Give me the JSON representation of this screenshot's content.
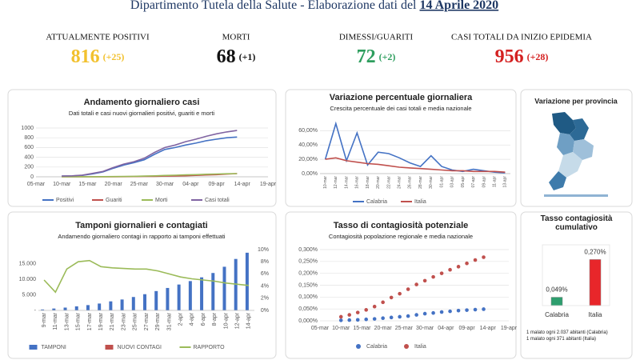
{
  "header": {
    "title": "Dipartimento Tutela della Salute - Elaborazione dati del ",
    "date": "14 Aprile 2020"
  },
  "kpis": [
    {
      "label": "ATTUALMENTE POSITIVI",
      "value": 816,
      "delta": "(+25)",
      "color": "#f2c12e"
    },
    {
      "label": "MORTI",
      "value": 68,
      "delta": "(+1)",
      "color": "#111111"
    },
    {
      "label": "DIMESSI/GUARITI",
      "value": 72,
      "delta": "(+2)",
      "color": "#2e9e5e"
    },
    {
      "label": "CASI TOTALI DA INIZIO EPIDEMIA",
      "value": 956,
      "delta": "(+28)",
      "color": "#d42020"
    }
  ],
  "map_panel": {
    "title": "Variazione per provincia"
  },
  "chart_data": [
    {
      "type": "line",
      "title": "Andamento giornaliero casi",
      "subtitle": "Dati totali e casi nuovi giornalieri positivi, guariti e morti",
      "x": [
        "10-mar",
        "12-mar",
        "14-mar",
        "16-mar",
        "18-mar",
        "20-mar",
        "22-mar",
        "24-mar",
        "26-mar",
        "28-mar",
        "30-mar",
        "01-apr",
        "03-apr",
        "05-apr",
        "07-apr",
        "09-apr",
        "11-apr",
        "13-apr"
      ],
      "xlim": [
        "05-mar",
        "19-apr"
      ],
      "xticks": [
        "05-mar",
        "10-mar",
        "15-mar",
        "20-mar",
        "25-mar",
        "30-mar",
        "04-apr",
        "09-apr",
        "14-apr",
        "19-apr"
      ],
      "ylim": [
        0,
        1000
      ],
      "yticks": [
        0,
        200,
        400,
        600,
        800,
        1000
      ],
      "grid": true,
      "series": [
        {
          "name": "Positivi",
          "color": "#4472c4",
          "values": [
            14,
            18,
            30,
            60,
            100,
            175,
            240,
            290,
            350,
            460,
            560,
            600,
            650,
            690,
            740,
            770,
            800,
            815
          ]
        },
        {
          "name": "Guariti",
          "color": "#c0504d",
          "values": [
            0,
            0,
            0,
            0,
            0,
            2,
            3,
            5,
            8,
            10,
            15,
            18,
            22,
            30,
            38,
            45,
            55,
            65
          ]
        },
        {
          "name": "Morti",
          "color": "#9bbb59",
          "values": [
            0,
            0,
            1,
            2,
            3,
            5,
            7,
            10,
            14,
            20,
            28,
            33,
            40,
            45,
            52,
            58,
            63,
            66
          ]
        },
        {
          "name": "Casi totali",
          "color": "#8064a2",
          "values": [
            15,
            20,
            35,
            70,
            110,
            190,
            260,
            310,
            380,
            500,
            600,
            650,
            720,
            770,
            830,
            880,
            920,
            950
          ]
        }
      ]
    },
    {
      "type": "line",
      "title": "Variazione percentuale giornaliera",
      "subtitle": "Crescita percentuale dei casi totali e media nazionale",
      "categories": [
        "10-mar",
        "12-mar",
        "14-mar",
        "16-mar",
        "18-mar",
        "20-mar",
        "22-mar",
        "24-mar",
        "26-mar",
        "28-mar",
        "30-mar",
        "01-apr",
        "03-apr",
        "05-apr",
        "07-apr",
        "09-apr",
        "11-apr",
        "13-apr"
      ],
      "ylim": [
        0,
        75
      ],
      "yticks": [
        {
          "value": 0,
          "label": "0,00%"
        },
        {
          "value": 20,
          "label": "20,00%"
        },
        {
          "value": 40,
          "label": "40,00%"
        },
        {
          "value": 60,
          "label": "60,00%"
        }
      ],
      "grid": true,
      "series": [
        {
          "name": "Calabria",
          "color": "#4472c4",
          "values": [
            20,
            70,
            18,
            57,
            12,
            30,
            28,
            22,
            15,
            10,
            25,
            10,
            5,
            3,
            6,
            4,
            2,
            1
          ]
        },
        {
          "name": "Italia",
          "color": "#c0504d",
          "values": [
            20,
            22,
            18,
            16,
            14,
            13,
            11,
            9,
            8,
            7,
            6,
            5,
            4,
            4,
            3,
            3,
            3,
            2
          ]
        }
      ]
    },
    {
      "type": "combo",
      "title": "Tamponi giornalieri e contagiati",
      "subtitle": "Andamendo giornaliero contagi in rapporto ai tamponi effettuati",
      "categories": [
        "9-mar",
        "11-mar",
        "13-mar",
        "15-mar",
        "17-mar",
        "19-mar",
        "21-mar",
        "23-mar",
        "25-mar",
        "27-mar",
        "29-mar",
        "31-mar",
        "2-apr",
        "4-apr",
        "6-apr",
        "8-apr",
        "10-apr",
        "12-apr",
        "14-apr"
      ],
      "ylim": [
        0,
        19500
      ],
      "yticks": [
        {
          "value": 0,
          "label": "-"
        },
        {
          "value": 5000,
          "label": "5.000"
        },
        {
          "value": 10000,
          "label": "10.000"
        },
        {
          "value": 15000,
          "label": "15.000"
        }
      ],
      "y2lim": [
        0,
        10
      ],
      "y2ticks": [
        {
          "value": 0,
          "label": "0%"
        },
        {
          "value": 2,
          "label": "2%"
        },
        {
          "value": 4,
          "label": "4%"
        },
        {
          "value": 6,
          "label": "6%"
        },
        {
          "value": 8,
          "label": "8%"
        },
        {
          "value": 10,
          "label": "10%"
        }
      ],
      "series": [
        {
          "name": "TAMPONI",
          "type": "bar",
          "color": "#4472c4",
          "values": [
            300,
            600,
            900,
            1300,
            1700,
            2200,
            2900,
            3500,
            4300,
            5200,
            6200,
            7200,
            8300,
            9400,
            10600,
            12000,
            14000,
            16500,
            18500
          ]
        },
        {
          "name": "NUOVI CONTAGI",
          "type": "bar",
          "color": "#c0504d",
          "values": [
            3,
            5,
            10,
            20,
            30,
            40,
            35,
            30,
            40,
            60,
            50,
            40,
            35,
            30,
            25,
            30,
            20,
            15,
            10
          ]
        },
        {
          "name": "RAPPORTO",
          "type": "line",
          "axis": "y2",
          "color": "#9bbb59",
          "values": [
            5.0,
            3.0,
            6.8,
            8.0,
            8.2,
            7.2,
            7.0,
            6.9,
            6.8,
            6.8,
            6.5,
            6.0,
            5.5,
            5.2,
            5.0,
            4.8,
            4.5,
            4.3,
            4.1
          ]
        }
      ]
    },
    {
      "type": "scatter",
      "title": "Tasso di contagiosità potenziale",
      "subtitle": "Contagiosità popolazione regionale e media nazionale",
      "x": [
        "10-mar",
        "12-mar",
        "14-mar",
        "16-mar",
        "18-mar",
        "20-mar",
        "22-mar",
        "24-mar",
        "26-mar",
        "28-mar",
        "30-mar",
        "01-apr",
        "03-apr",
        "05-apr",
        "07-apr",
        "09-apr",
        "11-apr",
        "13-apr"
      ],
      "xlim": [
        "05-mar",
        "19-apr"
      ],
      "xticks": [
        "05-mar",
        "10-mar",
        "15-mar",
        "20-mar",
        "25-mar",
        "30-mar",
        "04-apr",
        "09-apr",
        "14-apr",
        "19-apr"
      ],
      "ylim": [
        0,
        0.3
      ],
      "yticks": [
        {
          "value": 0,
          "label": "0,000%"
        },
        {
          "value": 0.05,
          "label": "0,050%"
        },
        {
          "value": 0.1,
          "label": "0,100%"
        },
        {
          "value": 0.15,
          "label": "0,150%"
        },
        {
          "value": 0.2,
          "label": "0,200%"
        },
        {
          "value": 0.25,
          "label": "0,250%"
        },
        {
          "value": 0.3,
          "label": "0,300%"
        }
      ],
      "grid": true,
      "series": [
        {
          "name": "Calabria",
          "color": "#4472c4",
          "values": [
            0.002,
            0.003,
            0.004,
            0.006,
            0.008,
            0.011,
            0.014,
            0.017,
            0.02,
            0.025,
            0.03,
            0.033,
            0.037,
            0.04,
            0.043,
            0.045,
            0.047,
            0.049
          ]
        },
        {
          "name": "Italia",
          "color": "#c0504d",
          "values": [
            0.017,
            0.025,
            0.035,
            0.046,
            0.06,
            0.078,
            0.098,
            0.114,
            0.133,
            0.153,
            0.169,
            0.185,
            0.2,
            0.215,
            0.228,
            0.242,
            0.256,
            0.268
          ]
        }
      ]
    },
    {
      "type": "bar",
      "title": "Tasso contagiosità cumulativo",
      "categories": [
        "Calabria",
        "Italia"
      ],
      "values": [
        0.049,
        0.27
      ],
      "value_labels": [
        "0,049%",
        "0,270%"
      ],
      "colors": [
        "#2e9e6e",
        "#e8262a"
      ],
      "ylim": [
        0,
        0.3
      ],
      "notes": [
        "1 malato ogni 2.037 abitanti (Calabria)",
        "1 malato ogni 371 abitanti (Italia)"
      ]
    }
  ]
}
